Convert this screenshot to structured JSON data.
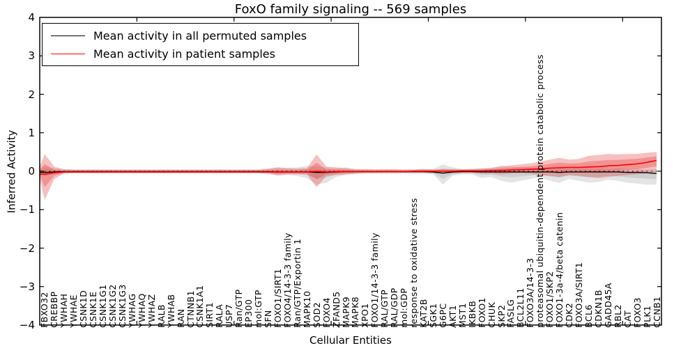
{
  "figure": {
    "title": "FoxO family signaling -- 569 samples",
    "xlabel": "Cellular Entities",
    "ylabel": "Inferred Activity",
    "background_color": "#ffffff"
  },
  "legend": {
    "items": [
      {
        "label": "Mean activity in all permuted samples",
        "color": "#000000"
      },
      {
        "label": "Mean activity in patient samples",
        "color": "#ff0000"
      }
    ]
  },
  "axes": {
    "y_tick_labels": [
      "4",
      "3",
      "2",
      "1",
      "0",
      "−1",
      "−2",
      "−3",
      "−4"
    ],
    "y_tick_values": [
      4,
      3,
      2,
      1,
      0,
      -1,
      -2,
      -3,
      -4
    ]
  },
  "chart_data": {
    "type": "line",
    "title": "FoxO family signaling -- 569 samples",
    "xlabel": "Cellular Entities",
    "ylabel": "Inferred Activity",
    "ylim": [
      -4,
      4
    ],
    "grid": false,
    "legend_position": "upper left",
    "zero_line": "dotted black horizontal line at y=0",
    "categories": [
      "FBXO32",
      "CREBBP",
      "YWHAH",
      "YWHAE",
      "CSNK1D",
      "CSNK1E",
      "CSNK1G1",
      "CSNK1G2",
      "CSNK1G3",
      "YWHAG",
      "YWHAQ",
      "YWHAZ",
      "RALB",
      "YWHAB",
      "RAN",
      "CTNNB1",
      "CSNK1A1",
      "SIRT1",
      "RALA",
      "USP7",
      "Ran/GTP",
      "EP300",
      "mol:GTP",
      "SFN",
      "FOXO1/SIRT1",
      "FOXO4/14-3-3 family",
      "Ran/GTP/Exportin 1",
      "MAPK10",
      "SOD2",
      "FOXO4",
      "ZFAND5",
      "MAPK9",
      "MAPK8",
      "XPO1",
      "FOXO1/14-3-3 family",
      "RAL/GTP",
      "RAL/GDP",
      "mol:GDP",
      "response to oxidative stress",
      "KAT2B",
      "SGK1",
      "G6PC",
      "AKT1",
      "MST1",
      "IKBKB",
      "FOXO1",
      "CHUK",
      "SKP2",
      "FASLG",
      "BCL2L11",
      "FOXO3A/14-3-3",
      "proteasomal ubiquitin-dependent protein catabolic process",
      "FOXO1/SKP2",
      "FOXO1-3a-4/beta catenin",
      "CDK2",
      "FOXO3A/SIRT1",
      "BCL6",
      "CDKN1B",
      "GADD45A",
      "RBL2",
      "CAT",
      "FOXO3",
      "PLK1",
      "CCNB1"
    ],
    "series": [
      {
        "name": "Mean activity in all permuted samples",
        "color": "#000000",
        "values": [
          -0.03,
          -0.02,
          -0.01,
          -0.01,
          -0.01,
          -0.01,
          -0.01,
          -0.01,
          -0.01,
          -0.01,
          -0.01,
          -0.01,
          -0.01,
          -0.01,
          -0.01,
          -0.01,
          -0.01,
          -0.01,
          -0.01,
          -0.01,
          -0.01,
          -0.01,
          -0.01,
          -0.01,
          -0.02,
          -0.02,
          -0.02,
          -0.02,
          -0.03,
          -0.03,
          -0.02,
          -0.01,
          -0.01,
          -0.01,
          -0.01,
          -0.01,
          -0.01,
          -0.01,
          -0.01,
          -0.01,
          -0.02,
          -0.05,
          -0.02,
          -0.01,
          -0.01,
          -0.02,
          -0.02,
          -0.02,
          -0.02,
          -0.02,
          -0.02,
          -0.02,
          -0.02,
          -0.03,
          -0.02,
          -0.02,
          -0.02,
          -0.02,
          -0.02,
          -0.02,
          -0.03,
          -0.03,
          -0.04,
          -0.06
        ]
      },
      {
        "name": "Mean activity in patient samples",
        "color": "#ff0000",
        "values": [
          -0.08,
          -0.04,
          -0.02,
          -0.02,
          -0.02,
          -0.02,
          -0.02,
          -0.02,
          -0.02,
          -0.02,
          -0.02,
          -0.02,
          -0.02,
          -0.02,
          -0.02,
          -0.02,
          -0.02,
          -0.02,
          -0.02,
          -0.02,
          -0.02,
          -0.02,
          -0.02,
          -0.02,
          -0.02,
          -0.02,
          -0.02,
          -0.02,
          0.0,
          -0.02,
          -0.01,
          -0.01,
          -0.01,
          -0.01,
          -0.01,
          -0.01,
          -0.01,
          -0.01,
          0.0,
          0.0,
          0.0,
          0.0,
          0.0,
          0.01,
          0.01,
          0.01,
          0.02,
          0.02,
          0.03,
          0.04,
          0.05,
          0.06,
          0.08,
          0.09,
          0.1,
          0.1,
          0.11,
          0.12,
          0.14,
          0.15,
          0.17,
          0.19,
          0.23,
          0.28
        ]
      }
    ],
    "bands": [
      {
        "name": "permuted samples activity range",
        "color": "#9a9a9a",
        "hi": [
          0.12,
          0.08,
          0.06,
          0.05,
          0.05,
          0.05,
          0.05,
          0.05,
          0.05,
          0.05,
          0.05,
          0.05,
          0.05,
          0.05,
          0.05,
          0.05,
          0.05,
          0.05,
          0.05,
          0.05,
          0.05,
          0.05,
          0.05,
          0.08,
          0.1,
          0.09,
          0.1,
          0.14,
          0.12,
          0.1,
          0.08,
          0.1,
          0.06,
          0.06,
          0.06,
          0.05,
          0.05,
          0.05,
          0.06,
          0.06,
          0.06,
          0.18,
          0.1,
          0.06,
          0.06,
          0.08,
          0.08,
          0.15,
          0.12,
          0.1,
          0.1,
          0.08,
          0.1,
          0.08,
          0.08,
          0.1,
          0.08,
          0.08,
          0.06,
          0.08,
          0.06,
          0.06,
          0.05,
          0.05
        ],
        "lo": [
          -0.12,
          -0.08,
          -0.06,
          -0.05,
          -0.05,
          -0.05,
          -0.05,
          -0.05,
          -0.05,
          -0.05,
          -0.05,
          -0.05,
          -0.05,
          -0.05,
          -0.05,
          -0.05,
          -0.05,
          -0.05,
          -0.05,
          -0.05,
          -0.05,
          -0.05,
          -0.05,
          -0.08,
          -0.12,
          -0.1,
          -0.12,
          -0.18,
          -0.35,
          -0.3,
          -0.15,
          -0.1,
          -0.08,
          -0.06,
          -0.06,
          -0.05,
          -0.05,
          -0.05,
          -0.06,
          -0.06,
          -0.08,
          -0.35,
          -0.12,
          -0.08,
          -0.08,
          -0.18,
          -0.15,
          -0.25,
          -0.3,
          -0.25,
          -0.2,
          -0.15,
          -0.25,
          -0.3,
          -0.2,
          -0.25,
          -0.3,
          -0.28,
          -0.22,
          -0.25,
          -0.3,
          -0.32,
          -0.35,
          -0.35
        ]
      },
      {
        "name": "patient samples activity range",
        "color": "#e84040",
        "hi": [
          0.45,
          0.12,
          0.05,
          0.04,
          0.04,
          0.04,
          0.04,
          0.04,
          0.04,
          0.04,
          0.04,
          0.04,
          0.04,
          0.04,
          0.04,
          0.04,
          0.04,
          0.04,
          0.04,
          0.04,
          0.04,
          0.04,
          0.04,
          0.06,
          0.1,
          0.08,
          0.07,
          0.08,
          0.44,
          0.12,
          0.1,
          0.08,
          0.05,
          0.05,
          0.04,
          0.05,
          0.05,
          0.04,
          0.04,
          0.06,
          0.05,
          0.06,
          0.06,
          0.05,
          0.06,
          0.07,
          0.09,
          0.12,
          0.15,
          0.18,
          0.2,
          0.25,
          0.3,
          0.35,
          0.3,
          0.32,
          0.4,
          0.42,
          0.45,
          0.44,
          0.45,
          0.45,
          0.48,
          0.5
        ],
        "lo": [
          -0.75,
          -0.2,
          -0.06,
          -0.05,
          -0.05,
          -0.05,
          -0.05,
          -0.05,
          -0.05,
          -0.05,
          -0.05,
          -0.05,
          -0.05,
          -0.05,
          -0.05,
          -0.05,
          -0.05,
          -0.05,
          -0.05,
          -0.05,
          -0.05,
          -0.05,
          -0.05,
          -0.06,
          -0.1,
          -0.08,
          -0.08,
          -0.08,
          -0.42,
          -0.12,
          -0.1,
          -0.08,
          -0.06,
          -0.05,
          -0.05,
          -0.05,
          -0.05,
          -0.05,
          -0.05,
          -0.05,
          -0.05,
          -0.06,
          -0.06,
          -0.05,
          -0.05,
          -0.06,
          -0.06,
          -0.08,
          -0.06,
          -0.05,
          -0.06,
          -0.1,
          -0.12,
          -0.15,
          -0.1,
          -0.12,
          -0.15,
          -0.18,
          -0.15,
          -0.12,
          -0.1,
          -0.08,
          -0.05,
          -0.02
        ]
      }
    ]
  }
}
